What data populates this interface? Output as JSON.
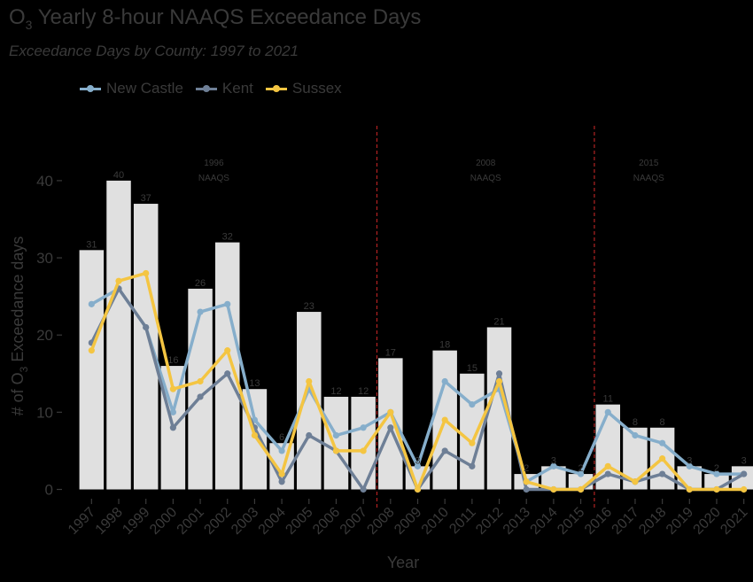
{
  "header": {
    "title_prefix": "O",
    "title_sub": "3",
    "title_rest": " Yearly 8-hour NAAQS Exceedance Days",
    "subtitle": "Exceedance Days by County: 1997 to 2021"
  },
  "colors": {
    "bar": "#e0e0e0",
    "new_castle": "#86aecb",
    "kent": "#6e7f96",
    "sussex": "#f4c542",
    "vline": "#b22222",
    "text": "#3a3a3a"
  },
  "legend": [
    {
      "label": "New Castle",
      "color_key": "new_castle"
    },
    {
      "label": "Kent",
      "color_key": "kent"
    },
    {
      "label": "Sussex",
      "color_key": "sussex"
    }
  ],
  "chart_data": {
    "type": "bar",
    "title": "O3 Yearly 8-hour NAAQS Exceedance Days",
    "subtitle": "Exceedance Days by County: 1997 to 2021",
    "xlabel": "Year",
    "ylabel_prefix": "# of O",
    "ylabel_sub": "3",
    "ylabel_rest": " Exceedance days",
    "ylim": [
      0,
      45
    ],
    "yticks": [
      0,
      10,
      20,
      30,
      40
    ],
    "categories": [
      "1997",
      "1998",
      "1999",
      "2000",
      "2001",
      "2002",
      "2003",
      "2004",
      "2005",
      "2006",
      "2007",
      "2008",
      "2009",
      "2010",
      "2011",
      "2012",
      "2013",
      "2014",
      "2015",
      "2016",
      "2017",
      "2018",
      "2019",
      "2020",
      "2021"
    ],
    "bar_values": [
      31,
      40,
      37,
      16,
      26,
      32,
      13,
      6,
      23,
      12,
      12,
      17,
      3,
      18,
      15,
      21,
      2,
      3,
      2,
      11,
      8,
      8,
      3,
      2,
      3
    ],
    "series": [
      {
        "name": "New Castle",
        "color_key": "new_castle",
        "values": [
          24,
          26,
          21,
          10,
          23,
          24,
          9,
          5,
          13,
          7,
          8,
          10,
          3,
          14,
          11,
          13,
          1,
          3,
          2,
          10,
          7,
          6,
          3,
          2,
          2
        ]
      },
      {
        "name": "Kent",
        "color_key": "kent",
        "values": [
          19,
          26,
          21,
          8,
          12,
          15,
          8,
          1,
          7,
          5,
          0,
          8,
          0,
          5,
          3,
          15,
          0,
          0,
          0,
          2,
          1,
          2,
          0,
          0,
          2
        ]
      },
      {
        "name": "Sussex",
        "color_key": "sussex",
        "values": [
          18,
          27,
          28,
          13,
          14,
          18,
          7,
          2,
          14,
          5,
          5,
          10,
          0,
          9,
          6,
          14,
          1,
          0,
          0,
          3,
          1,
          4,
          0,
          0,
          0
        ]
      }
    ],
    "vlines": [
      {
        "after_index": 10,
        "line1": "",
        "line2": ""
      },
      {
        "after_index": 18,
        "line1": "",
        "line2": ""
      }
    ],
    "annotations": [
      {
        "x_index": 4.5,
        "line1": "1996",
        "line2": "NAAQS"
      },
      {
        "x_index": 14.5,
        "line1": "2008",
        "line2": "NAAQS"
      },
      {
        "x_index": 20.5,
        "line1": "2015",
        "line2": "NAAQS"
      }
    ],
    "grid": false,
    "legend_position": "top-left"
  }
}
